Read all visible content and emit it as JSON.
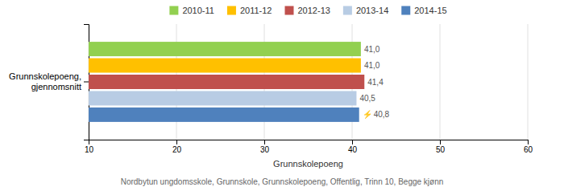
{
  "chart_data": {
    "type": "bar",
    "orientation": "horizontal",
    "categories": [
      "Grunnskolepoeng,\ngjennomsnitt"
    ],
    "series": [
      {
        "name": "2010-11",
        "color": "#92d050",
        "values": [
          41.0
        ],
        "value_labels": [
          "41,0"
        ]
      },
      {
        "name": "2011-12",
        "color": "#ffc000",
        "values": [
          41.0
        ],
        "value_labels": [
          "41,0"
        ]
      },
      {
        "name": "2012-13",
        "color": "#c0504d",
        "values": [
          41.4
        ],
        "value_labels": [
          "41,4"
        ]
      },
      {
        "name": "2013-14",
        "color": "#b8cce4",
        "values": [
          40.5
        ],
        "value_labels": [
          "40,5"
        ]
      },
      {
        "name": "2014-15",
        "color": "#4f81bd",
        "values": [
          40.8
        ],
        "value_labels": [
          "40,8"
        ]
      }
    ],
    "xlim": [
      10,
      60
    ],
    "xticks": [
      10,
      20,
      30,
      40,
      50,
      60
    ],
    "xlabel": "Grunnskolepoeng",
    "annotations": [
      "⚡"
    ],
    "footnote": "Nordbytun ungdomsskole, Grunnskole, Grunnskolepoeng, Offentlig, Trinn 10, Begge kjønn",
    "grid": true,
    "legend": "top",
    "data_labels": true
  }
}
